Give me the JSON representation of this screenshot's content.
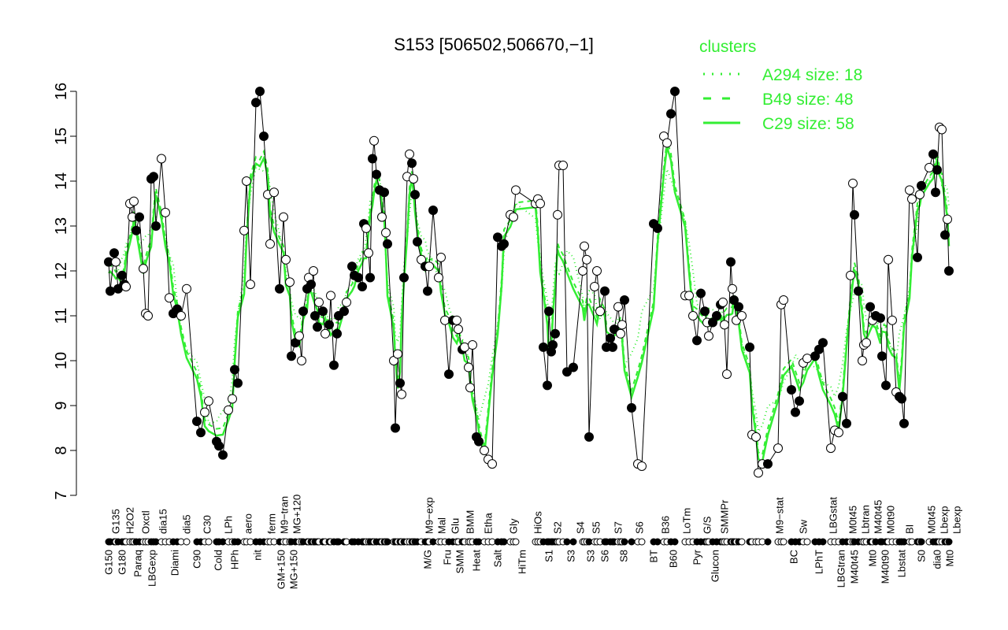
{
  "chart_data": {
    "type": "line",
    "title": "S153 [506502,506670,−1]",
    "xlabel": "",
    "ylabel": "",
    "ylim": [
      7,
      16
    ],
    "xlim": [
      0,
      1120
    ],
    "yticks": [
      7,
      8,
      9,
      10,
      11,
      12,
      13,
      14,
      15,
      16
    ],
    "legend": {
      "title": "clusters",
      "placement": "top-right",
      "entries": [
        {
          "label": "A294 size: 18",
          "style": "dotted"
        },
        {
          "label": "B49 size: 48",
          "style": "dashed"
        },
        {
          "label": "C29 size: 58",
          "style": "solid"
        }
      ]
    },
    "colors": {
      "cluster": "#33ee33",
      "line": "#000000"
    },
    "points": [
      [
        38,
        12.2,
        1
      ],
      [
        40,
        11.55,
        1
      ],
      [
        45,
        12.4,
        1
      ],
      [
        47,
        12.2,
        0
      ],
      [
        50,
        11.6,
        1
      ],
      [
        55,
        11.9,
        1
      ],
      [
        58,
        11.7,
        1
      ],
      [
        60,
        11.65,
        0
      ],
      [
        65,
        13.5,
        0
      ],
      [
        68,
        13.2,
        0
      ],
      [
        70,
        13.55,
        0
      ],
      [
        73,
        12.9,
        1
      ],
      [
        77,
        13.2,
        1
      ],
      [
        82,
        12.05,
        0
      ],
      [
        85,
        11.05,
        0
      ],
      [
        88,
        11.0,
        0
      ],
      [
        92,
        14.05,
        1
      ],
      [
        95,
        14.1,
        1
      ],
      [
        98,
        13.0,
        1
      ],
      [
        105,
        14.5,
        0
      ],
      [
        110,
        13.3,
        0
      ],
      [
        115,
        11.4,
        0
      ],
      [
        120,
        11.05,
        1
      ],
      [
        125,
        11.15,
        1
      ],
      [
        130,
        11.0,
        0
      ],
      [
        137,
        11.6,
        0
      ],
      [
        150,
        8.65,
        1
      ],
      [
        155,
        8.4,
        1
      ],
      [
        160,
        8.85,
        0
      ],
      [
        165,
        9.1,
        0
      ],
      [
        175,
        8.2,
        1
      ],
      [
        178,
        8.1,
        1
      ],
      [
        183,
        7.9,
        1
      ],
      [
        190,
        8.9,
        0
      ],
      [
        195,
        9.15,
        0
      ],
      [
        198,
        9.8,
        1
      ],
      [
        202,
        9.5,
        1
      ],
      [
        210,
        12.9,
        0
      ],
      [
        213,
        14.0,
        0
      ],
      [
        218,
        11.7,
        0
      ],
      [
        225,
        15.75,
        1
      ],
      [
        230,
        16.0,
        1
      ],
      [
        235,
        15.0,
        1
      ],
      [
        240,
        13.7,
        0
      ],
      [
        243,
        12.6,
        0
      ],
      [
        248,
        13.75,
        0
      ],
      [
        255,
        11.6,
        1
      ],
      [
        260,
        13.2,
        0
      ],
      [
        263,
        12.25,
        0
      ],
      [
        268,
        11.75,
        0
      ],
      [
        270,
        10.1,
        1
      ],
      [
        275,
        10.4,
        1
      ],
      [
        280,
        10.55,
        0
      ],
      [
        283,
        10.0,
        0
      ],
      [
        285,
        11.1,
        1
      ],
      [
        290,
        11.6,
        1
      ],
      [
        292,
        11.85,
        0
      ],
      [
        295,
        11.7,
        1
      ],
      [
        298,
        12.0,
        0
      ],
      [
        300,
        11.0,
        1
      ],
      [
        303,
        10.75,
        1
      ],
      [
        305,
        11.3,
        0
      ],
      [
        310,
        11.1,
        1
      ],
      [
        313,
        10.6,
        0
      ],
      [
        318,
        10.8,
        1
      ],
      [
        320,
        11.45,
        0
      ],
      [
        324,
        9.9,
        1
      ],
      [
        328,
        10.6,
        1
      ],
      [
        330,
        11.0,
        1
      ],
      [
        337,
        11.1,
        1
      ],
      [
        340,
        11.3,
        0
      ],
      [
        347,
        12.1,
        1
      ],
      [
        350,
        11.9,
        1
      ],
      [
        355,
        11.85,
        1
      ],
      [
        360,
        11.65,
        1
      ],
      [
        362,
        13.05,
        1
      ],
      [
        365,
        12.95,
        0
      ],
      [
        368,
        12.4,
        0
      ],
      [
        370,
        11.85,
        1
      ],
      [
        373,
        14.5,
        1
      ],
      [
        375,
        14.9,
        0
      ],
      [
        378,
        14.15,
        1
      ],
      [
        382,
        13.8,
        1
      ],
      [
        385,
        13.2,
        0
      ],
      [
        388,
        13.75,
        1
      ],
      [
        390,
        12.85,
        0
      ],
      [
        392,
        12.6,
        1
      ],
      [
        400,
        10.0,
        0
      ],
      [
        402,
        8.5,
        1
      ],
      [
        405,
        10.15,
        0
      ],
      [
        408,
        9.5,
        1
      ],
      [
        410,
        9.25,
        0
      ],
      [
        413,
        11.85,
        1
      ],
      [
        417,
        14.1,
        0
      ],
      [
        420,
        14.6,
        0
      ],
      [
        423,
        14.4,
        1
      ],
      [
        425,
        14.05,
        0
      ],
      [
        427,
        13.7,
        1
      ],
      [
        430,
        12.65,
        1
      ],
      [
        435,
        12.25,
        0
      ],
      [
        440,
        12.1,
        1
      ],
      [
        443,
        11.55,
        1
      ],
      [
        445,
        12.1,
        0
      ],
      [
        450,
        13.35,
        1
      ],
      [
        457,
        11.85,
        0
      ],
      [
        460,
        12.3,
        0
      ],
      [
        465,
        10.9,
        0
      ],
      [
        470,
        9.7,
        1
      ],
      [
        475,
        10.9,
        1
      ],
      [
        480,
        10.9,
        0
      ],
      [
        482,
        10.7,
        0
      ],
      [
        487,
        10.25,
        1
      ],
      [
        490,
        10.3,
        0
      ],
      [
        495,
        9.85,
        0
      ],
      [
        497,
        9.4,
        0
      ],
      [
        500,
        10.35,
        0
      ],
      [
        505,
        8.3,
        1
      ],
      [
        508,
        8.2,
        1
      ],
      [
        515,
        8.0,
        0
      ],
      [
        520,
        7.8,
        0
      ],
      [
        525,
        7.7,
        0
      ],
      [
        532,
        12.75,
        1
      ],
      [
        537,
        12.55,
        1
      ],
      [
        540,
        12.6,
        1
      ],
      [
        548,
        13.25,
        0
      ],
      [
        552,
        13.2,
        0
      ],
      [
        555,
        13.8,
        0
      ],
      [
        580,
        13.5,
        0
      ],
      [
        583,
        13.6,
        0
      ],
      [
        586,
        13.5,
        0
      ],
      [
        590,
        10.3,
        1
      ],
      [
        595,
        9.45,
        1
      ],
      [
        597,
        11.1,
        1
      ],
      [
        600,
        10.2,
        1
      ],
      [
        602,
        10.35,
        1
      ],
      [
        605,
        10.6,
        1
      ],
      [
        608,
        13.25,
        0
      ],
      [
        610,
        14.35,
        0
      ],
      [
        615,
        14.35,
        0
      ],
      [
        620,
        9.75,
        1
      ],
      [
        628,
        9.85,
        1
      ],
      [
        640,
        12.0,
        0
      ],
      [
        642,
        12.55,
        0
      ],
      [
        645,
        12.25,
        0
      ],
      [
        648,
        8.3,
        1
      ],
      [
        655,
        11.65,
        0
      ],
      [
        658,
        12.0,
        0
      ],
      [
        662,
        11.1,
        0
      ],
      [
        668,
        11.55,
        1
      ],
      [
        670,
        10.3,
        1
      ],
      [
        675,
        10.5,
        1
      ],
      [
        678,
        10.3,
        1
      ],
      [
        680,
        10.7,
        1
      ],
      [
        685,
        11.2,
        0
      ],
      [
        688,
        10.6,
        0
      ],
      [
        690,
        10.8,
        0
      ],
      [
        693,
        11.35,
        1
      ],
      [
        702,
        8.95,
        1
      ],
      [
        710,
        7.7,
        0
      ],
      [
        715,
        7.65,
        0
      ],
      [
        730,
        13.05,
        1
      ],
      [
        735,
        12.95,
        1
      ],
      [
        743,
        15.0,
        0
      ],
      [
        747,
        14.85,
        0
      ],
      [
        752,
        15.5,
        1
      ],
      [
        757,
        16.0,
        1
      ],
      [
        770,
        11.45,
        0
      ],
      [
        775,
        11.45,
        0
      ],
      [
        780,
        11.0,
        0
      ],
      [
        785,
        10.45,
        1
      ],
      [
        790,
        11.5,
        1
      ],
      [
        795,
        11.1,
        1
      ],
      [
        798,
        10.85,
        0
      ],
      [
        800,
        10.55,
        0
      ],
      [
        805,
        10.85,
        1
      ],
      [
        810,
        11.0,
        1
      ],
      [
        815,
        11.25,
        1
      ],
      [
        818,
        11.3,
        0
      ],
      [
        820,
        10.8,
        0
      ],
      [
        823,
        9.7,
        0
      ],
      [
        828,
        12.2,
        1
      ],
      [
        830,
        11.6,
        0
      ],
      [
        832,
        11.35,
        1
      ],
      [
        835,
        10.9,
        0
      ],
      [
        838,
        11.2,
        1
      ],
      [
        842,
        11.0,
        0
      ],
      [
        852,
        10.3,
        1
      ],
      [
        855,
        8.35,
        0
      ],
      [
        860,
        8.3,
        0
      ],
      [
        863,
        7.5,
        0
      ],
      [
        868,
        7.7,
        0
      ],
      [
        875,
        7.7,
        1
      ],
      [
        888,
        8.05,
        0
      ],
      [
        892,
        11.25,
        0
      ],
      [
        895,
        11.35,
        0
      ],
      [
        905,
        9.35,
        1
      ],
      [
        910,
        8.85,
        1
      ],
      [
        915,
        9.1,
        1
      ],
      [
        920,
        9.95,
        0
      ],
      [
        925,
        10.05,
        0
      ],
      [
        935,
        10.1,
        1
      ],
      [
        940,
        10.25,
        1
      ],
      [
        945,
        10.4,
        1
      ],
      [
        955,
        8.05,
        0
      ],
      [
        960,
        8.45,
        0
      ],
      [
        965,
        8.4,
        0
      ],
      [
        970,
        9.2,
        1
      ],
      [
        975,
        8.6,
        1
      ],
      [
        980,
        11.9,
        0
      ],
      [
        983,
        13.95,
        0
      ],
      [
        985,
        13.25,
        1
      ],
      [
        990,
        11.55,
        1
      ],
      [
        995,
        10.0,
        0
      ],
      [
        997,
        10.35,
        0
      ],
      [
        1000,
        10.4,
        0
      ],
      [
        1005,
        11.2,
        1
      ],
      [
        1008,
        10.9,
        0
      ],
      [
        1012,
        11.0,
        1
      ],
      [
        1018,
        10.95,
        1
      ],
      [
        1020,
        10.1,
        1
      ],
      [
        1025,
        9.45,
        1
      ],
      [
        1028,
        12.25,
        0
      ],
      [
        1033,
        10.9,
        0
      ],
      [
        1038,
        9.3,
        0
      ],
      [
        1042,
        9.2,
        1
      ],
      [
        1045,
        9.15,
        1
      ],
      [
        1048,
        8.6,
        1
      ],
      [
        1055,
        13.8,
        0
      ],
      [
        1058,
        13.6,
        0
      ],
      [
        1065,
        12.3,
        1
      ],
      [
        1068,
        13.7,
        0
      ],
      [
        1070,
        13.9,
        1
      ],
      [
        1080,
        14.3,
        0
      ],
      [
        1085,
        14.6,
        1
      ],
      [
        1088,
        13.75,
        1
      ],
      [
        1090,
        14.25,
        1
      ],
      [
        1093,
        15.2,
        0
      ],
      [
        1096,
        15.15,
        0
      ],
      [
        1100,
        12.8,
        1
      ],
      [
        1103,
        13.15,
        0
      ],
      [
        1105,
        12.0,
        1
      ]
    ],
    "xlabels_bottom": [
      [
        38,
        "G150"
      ],
      [
        55,
        "G180"
      ],
      [
        75,
        "Paraq"
      ],
      [
        93,
        "LBGexp"
      ],
      [
        122,
        "Diami"
      ],
      [
        150,
        "C90"
      ],
      [
        177,
        "Cold"
      ],
      [
        198,
        "HPh"
      ],
      [
        227,
        "nit"
      ],
      [
        257,
        "GM+150"
      ],
      [
        270,
        "MG+150"
      ],
      [
        443,
        "M/G"
      ],
      [
        468,
        "Fru"
      ],
      [
        483,
        "SMM"
      ],
      [
        505,
        "Heat"
      ],
      [
        532,
        "Salt"
      ],
      [
        563,
        "HiTm"
      ],
      [
        597,
        "S1"
      ],
      [
        625,
        "S3"
      ],
      [
        650,
        "S3"
      ],
      [
        668,
        "S6"
      ],
      [
        692,
        "S8"
      ],
      [
        730,
        "BT"
      ],
      [
        755,
        "B60"
      ],
      [
        785,
        "Pyr"
      ],
      [
        808,
        "Glucon"
      ],
      [
        908,
        "BC"
      ],
      [
        940,
        "LPhT"
      ],
      [
        968,
        "LBGtran"
      ],
      [
        985,
        "M40t45"
      ],
      [
        1008,
        "Mt0"
      ],
      [
        1020,
        "M40t90"
      ],
      [
        1045,
        "Lbstat"
      ],
      [
        1070,
        "S0"
      ],
      [
        1090,
        "dia0"
      ],
      [
        1103,
        "Mt0"
      ]
    ],
    "xlabels_top": [
      [
        47,
        "G135"
      ],
      [
        65,
        "H2O2"
      ],
      [
        85,
        "Oxctl"
      ],
      [
        107,
        "dia15"
      ],
      [
        137,
        "dia5"
      ],
      [
        163,
        "C30"
      ],
      [
        190,
        "LPh"
      ],
      [
        215,
        "aero"
      ],
      [
        245,
        "ferm"
      ],
      [
        258,
        "M9−tran"
      ],
      [
        272,
        "MG+120"
      ],
      [
        445,
        "M9−exp"
      ],
      [
        460,
        "Mal"
      ],
      [
        478,
        "Glu"
      ],
      [
        497,
        "BMM"
      ],
      [
        520,
        "Etha"
      ],
      [
        552,
        "Gly"
      ],
      [
        583,
        "HiOs"
      ],
      [
        608,
        "S2"
      ],
      [
        637,
        "S4"
      ],
      [
        657,
        "S5"
      ],
      [
        685,
        "S7"
      ],
      [
        712,
        "S6"
      ],
      [
        745,
        "B36"
      ],
      [
        772,
        "LoTm"
      ],
      [
        798,
        "G/S"
      ],
      [
        820,
        "SMMPr"
      ],
      [
        890,
        "M9−stat"
      ],
      [
        920,
        "Sw"
      ],
      [
        958,
        "LBGstat"
      ],
      [
        983,
        "M0t45"
      ],
      [
        995,
        "Lbtran"
      ],
      [
        1008,
        "M40t45"
      ],
      [
        1030,
        "M0t90"
      ],
      [
        1055,
        "BI"
      ],
      [
        1083,
        "M0t45"
      ],
      [
        1095,
        "Lbexp"
      ],
      [
        1100,
        "Lbexp"
      ]
    ]
  }
}
